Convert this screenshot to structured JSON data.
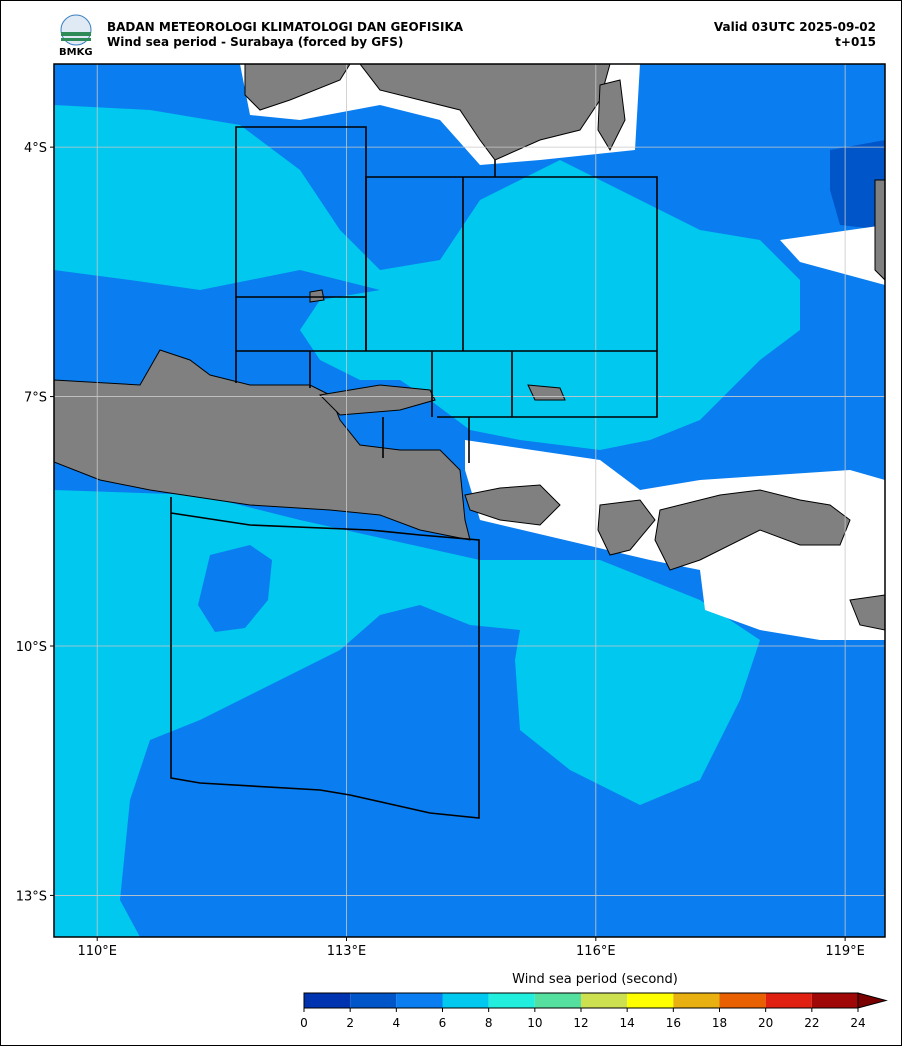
{
  "header": {
    "agency": "BADAN METEOROLOGI KLIMATOLOGI DAN GEOFISIKA",
    "title": "Wind sea period - Surabaya (forced by GFS)",
    "valid": "Valid 03UTC 2025-09-02",
    "step": "t+015",
    "logo": "BMKG"
  },
  "map": {
    "xlim": [
      109.48,
      119.48
    ],
    "ylim": [
      -13.5,
      -3.0
    ],
    "xticks": [
      {
        "value": 110,
        "label": "110°E"
      },
      {
        "value": 113,
        "label": "113°E"
      },
      {
        "value": 116,
        "label": "116°E"
      },
      {
        "value": 119,
        "label": "119°E"
      }
    ],
    "yticks": [
      {
        "value": -4,
        "label": "4°S"
      },
      {
        "value": -7,
        "label": "7°S"
      },
      {
        "value": -10,
        "label": "10°S"
      },
      {
        "value": -13,
        "label": "13°S"
      }
    ],
    "grid": true
  },
  "colorbar": {
    "label": "Wind sea period (second)",
    "ticks": [
      0,
      2,
      4,
      6,
      8,
      10,
      12,
      14,
      16,
      18,
      20,
      22,
      24
    ],
    "colors": [
      "#0033b0",
      "#0055c8",
      "#0a7ef0",
      "#00c8ee",
      "#22eedd",
      "#55e0a0",
      "#cce050",
      "#ffff00",
      "#e8b010",
      "#e86000",
      "#e02010",
      "#a00808"
    ],
    "extend_color": "#7a0000"
  }
}
